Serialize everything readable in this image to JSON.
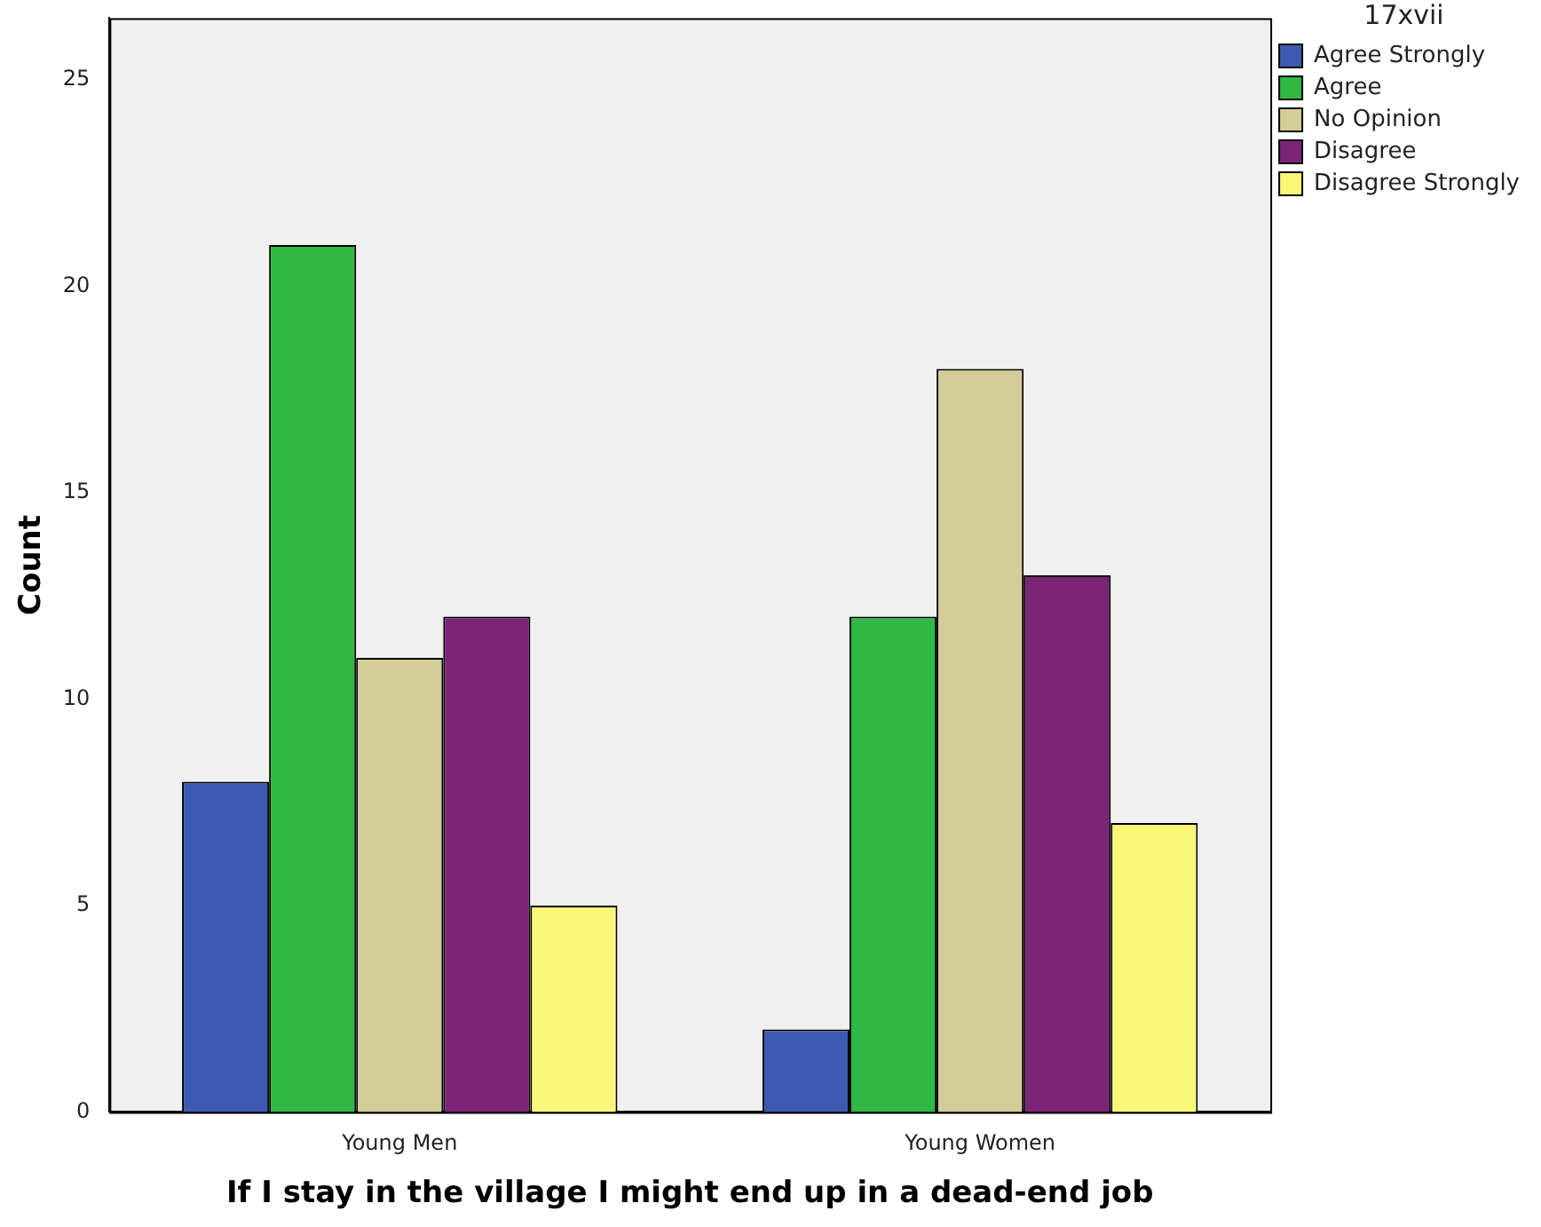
{
  "chart_data": {
    "type": "bar",
    "xlabel": "If I stay in the village I might end up in a dead-end job",
    "ylabel": "Count",
    "legend_title": "17xvii",
    "categories": [
      "Young Men",
      "Young Women"
    ],
    "series": [
      {
        "name": "Agree Strongly",
        "color": "#3e5ab0",
        "values": [
          8,
          2
        ]
      },
      {
        "name": "Agree",
        "color": "#2fb844",
        "values": [
          21,
          12
        ]
      },
      {
        "name": "No Opinion",
        "color": "#d4cd98",
        "values": [
          11,
          18
        ]
      },
      {
        "name": "Disagree",
        "color": "#7c2477",
        "values": [
          12,
          13
        ]
      },
      {
        "name": "Disagree Strongly",
        "color": "#faf678",
        "values": [
          5,
          7
        ]
      }
    ],
    "ylim": [
      0,
      26.5
    ],
    "yticks": [
      0,
      5,
      10,
      15,
      20,
      25
    ],
    "grid": false,
    "legend": "top right"
  }
}
